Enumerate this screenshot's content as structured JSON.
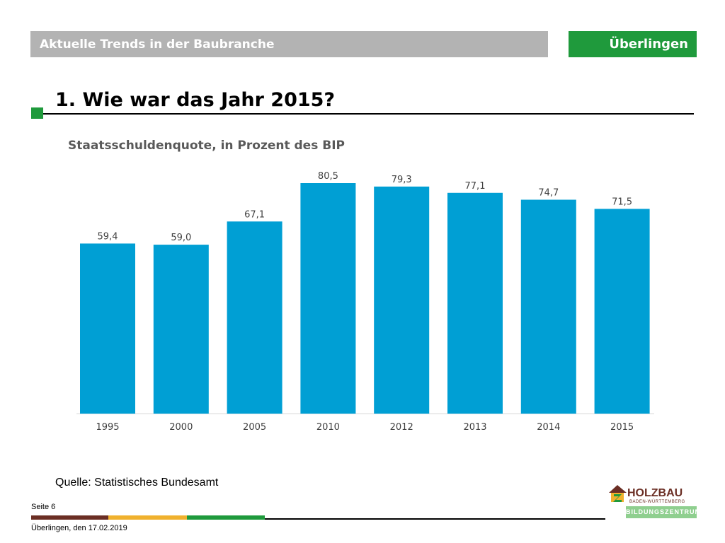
{
  "header": {
    "title": "Aktuelle Trends in der Baubranche",
    "location": "Überlingen"
  },
  "page_title": "1. Wie war das Jahr 2015?",
  "chart_data": {
    "type": "bar",
    "title": "Staatsschuldenquote, in Prozent des BIP",
    "categories": [
      "1995",
      "2000",
      "2005",
      "2010",
      "2012",
      "2013",
      "2014",
      "2015"
    ],
    "values": [
      59.4,
      59.0,
      67.1,
      80.5,
      79.3,
      77.1,
      74.7,
      71.5
    ],
    "value_labels": [
      "59,4",
      "59,0",
      "67,1",
      "80,5",
      "79,3",
      "77,1",
      "74,7",
      "71,5"
    ],
    "bar_color": "#009fd4",
    "xlabel": "",
    "ylabel": "",
    "grid": false
  },
  "source": "Quelle: Statistisches Bundesamt",
  "footer": {
    "page": "Seite 6",
    "date": "Überlingen, den 17.02.2019"
  },
  "logo": {
    "name": "HOLZBAU",
    "region": "BADEN-WÜRTTEMBERG",
    "band": "BILDUNGSZENTRUM"
  },
  "colors": {
    "accent_green": "#1f9a3c",
    "header_gray": "#b3b3b3",
    "stripe_brown": "#6b2e24",
    "stripe_yellow": "#f0b12d"
  }
}
